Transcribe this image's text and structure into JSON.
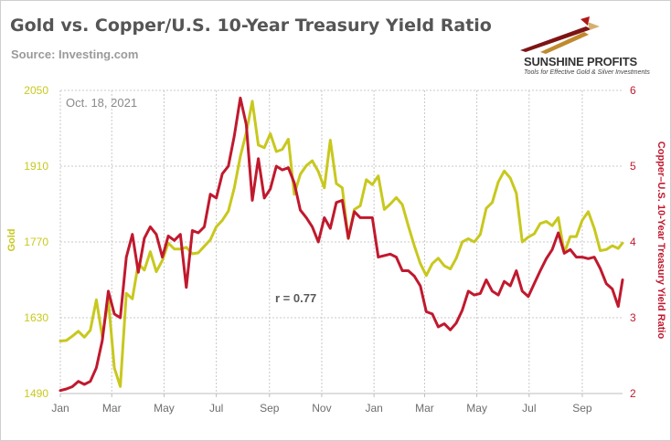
{
  "header": {
    "title": "Gold vs. Copper/U.S. 10-Year Treasury Yield Ratio",
    "source": "Source: Investing.com"
  },
  "logo": {
    "name": "SUNSHINE PROFITS",
    "tagline": "Tools for Effective Gold & Silver Investments"
  },
  "colors": {
    "gold": "#c8c81e",
    "ratio": "#c0192e",
    "axis_text": "#6d6d6d",
    "grid": "#c8c8c8"
  },
  "chart_data": {
    "type": "line",
    "date_label": "Oct. 18, 2021",
    "annotation": "r = 0.77",
    "x_tick_labels": [
      "Jan",
      "Mar",
      "May",
      "Jul",
      "Sep",
      "Nov",
      "Jan",
      "Mar",
      "May",
      "Jul",
      "Sep"
    ],
    "x_range": [
      "2020-01-01",
      "2021-10-18"
    ],
    "y_left": {
      "label": "Gold",
      "ticks": [
        1490,
        1630,
        1770,
        1910,
        2050
      ],
      "range": [
        1490,
        2050
      ]
    },
    "y_right": {
      "label": "Copper–U.S. 10-Year Treasury Yield Ratio",
      "ticks": [
        2,
        3,
        4,
        5,
        6
      ],
      "range": [
        2,
        6
      ]
    },
    "grid": true,
    "series": [
      {
        "name": "Gold",
        "axis": "left",
        "color": "#c8c81e",
        "points": [
          [
            "2020-01-01",
            1587
          ],
          [
            "2020-01-08",
            1588
          ],
          [
            "2020-01-15",
            1596
          ],
          [
            "2020-01-22",
            1605
          ],
          [
            "2020-01-29",
            1594
          ],
          [
            "2020-02-05",
            1607
          ],
          [
            "2020-02-12",
            1663
          ],
          [
            "2020-02-19",
            1595
          ],
          [
            "2020-02-26",
            1663
          ],
          [
            "2020-03-04",
            1537
          ],
          [
            "2020-03-11",
            1503
          ],
          [
            "2020-03-18",
            1675
          ],
          [
            "2020-03-25",
            1665
          ],
          [
            "2020-04-01",
            1730
          ],
          [
            "2020-04-08",
            1718
          ],
          [
            "2020-04-15",
            1752
          ],
          [
            "2020-04-22",
            1715
          ],
          [
            "2020-04-29",
            1736
          ],
          [
            "2020-05-06",
            1768
          ],
          [
            "2020-05-13",
            1757
          ],
          [
            "2020-05-20",
            1757
          ],
          [
            "2020-05-27",
            1760
          ],
          [
            "2020-06-03",
            1748
          ],
          [
            "2020-06-10",
            1750
          ],
          [
            "2020-06-17",
            1762
          ],
          [
            "2020-06-24",
            1774
          ],
          [
            "2020-07-01",
            1798
          ],
          [
            "2020-07-08",
            1810
          ],
          [
            "2020-07-15",
            1827
          ],
          [
            "2020-07-22",
            1870
          ],
          [
            "2020-07-29",
            1928
          ],
          [
            "2020-08-05",
            1972
          ],
          [
            "2020-08-12",
            2030
          ],
          [
            "2020-08-19",
            1949
          ],
          [
            "2020-08-26",
            1944
          ],
          [
            "2020-09-02",
            1970
          ],
          [
            "2020-09-09",
            1937
          ],
          [
            "2020-09-16",
            1941
          ],
          [
            "2020-09-23",
            1960
          ],
          [
            "2020-09-30",
            1858
          ],
          [
            "2020-10-07",
            1895
          ],
          [
            "2020-10-14",
            1911
          ],
          [
            "2020-10-21",
            1920
          ],
          [
            "2020-10-28",
            1900
          ],
          [
            "2020-11-04",
            1870
          ],
          [
            "2020-11-11",
            1958
          ],
          [
            "2020-11-18",
            1878
          ],
          [
            "2020-11-25",
            1870
          ],
          [
            "2020-12-02",
            1776
          ],
          [
            "2020-12-09",
            1830
          ],
          [
            "2020-12-16",
            1837
          ],
          [
            "2020-12-23",
            1885
          ],
          [
            "2020-12-30",
            1876
          ],
          [
            "2021-01-06",
            1892
          ],
          [
            "2021-01-13",
            1830
          ],
          [
            "2021-01-20",
            1840
          ],
          [
            "2021-01-27",
            1852
          ],
          [
            "2021-02-03",
            1839
          ],
          [
            "2021-02-10",
            1800
          ],
          [
            "2021-02-17",
            1763
          ],
          [
            "2021-02-24",
            1730
          ],
          [
            "2021-03-03",
            1708
          ],
          [
            "2021-03-10",
            1730
          ],
          [
            "2021-03-17",
            1740
          ],
          [
            "2021-03-24",
            1726
          ],
          [
            "2021-03-31",
            1720
          ],
          [
            "2021-04-07",
            1740
          ],
          [
            "2021-04-14",
            1770
          ],
          [
            "2021-04-21",
            1776
          ],
          [
            "2021-04-28",
            1770
          ],
          [
            "2021-05-05",
            1784
          ],
          [
            "2021-05-12",
            1832
          ],
          [
            "2021-05-19",
            1843
          ],
          [
            "2021-05-26",
            1881
          ],
          [
            "2021-06-02",
            1901
          ],
          [
            "2021-06-09",
            1888
          ],
          [
            "2021-06-16",
            1860
          ],
          [
            "2021-06-23",
            1770
          ],
          [
            "2021-06-30",
            1779
          ],
          [
            "2021-07-07",
            1785
          ],
          [
            "2021-07-14",
            1804
          ],
          [
            "2021-07-21",
            1808
          ],
          [
            "2021-07-28",
            1800
          ],
          [
            "2021-08-04",
            1815
          ],
          [
            "2021-08-11",
            1750
          ],
          [
            "2021-08-18",
            1780
          ],
          [
            "2021-08-25",
            1780
          ],
          [
            "2021-09-01",
            1810
          ],
          [
            "2021-09-08",
            1826
          ],
          [
            "2021-09-15",
            1795
          ],
          [
            "2021-09-22",
            1754
          ],
          [
            "2021-09-29",
            1756
          ],
          [
            "2021-10-06",
            1763
          ],
          [
            "2021-10-13",
            1758
          ],
          [
            "2021-10-18",
            1768
          ]
        ]
      },
      {
        "name": "Copper–U.S. 10-Year Treasury Yield Ratio",
        "axis": "right",
        "color": "#c0192e",
        "points": [
          [
            "2020-01-01",
            2.04
          ],
          [
            "2020-01-08",
            2.06
          ],
          [
            "2020-01-15",
            2.09
          ],
          [
            "2020-01-22",
            2.16
          ],
          [
            "2020-01-29",
            2.12
          ],
          [
            "2020-02-05",
            2.16
          ],
          [
            "2020-02-12",
            2.34
          ],
          [
            "2020-02-19",
            2.7
          ],
          [
            "2020-02-26",
            3.35
          ],
          [
            "2020-03-04",
            3.05
          ],
          [
            "2020-03-11",
            3.0
          ],
          [
            "2020-03-18",
            3.8
          ],
          [
            "2020-03-25",
            4.1
          ],
          [
            "2020-04-01",
            3.6
          ],
          [
            "2020-04-08",
            4.05
          ],
          [
            "2020-04-15",
            4.2
          ],
          [
            "2020-04-22",
            4.1
          ],
          [
            "2020-04-29",
            3.8
          ],
          [
            "2020-05-06",
            4.08
          ],
          [
            "2020-05-13",
            4.02
          ],
          [
            "2020-05-20",
            4.1
          ],
          [
            "2020-05-27",
            3.4
          ],
          [
            "2020-06-03",
            4.15
          ],
          [
            "2020-06-10",
            4.12
          ],
          [
            "2020-06-17",
            4.2
          ],
          [
            "2020-06-24",
            4.63
          ],
          [
            "2020-07-01",
            4.58
          ],
          [
            "2020-07-08",
            4.9
          ],
          [
            "2020-07-15",
            5.0
          ],
          [
            "2020-07-22",
            5.4
          ],
          [
            "2020-07-29",
            5.9
          ],
          [
            "2020-08-05",
            5.55
          ],
          [
            "2020-08-12",
            4.55
          ],
          [
            "2020-08-19",
            5.1
          ],
          [
            "2020-08-26",
            4.58
          ],
          [
            "2020-09-02",
            4.7
          ],
          [
            "2020-09-09",
            5.0
          ],
          [
            "2020-09-16",
            4.95
          ],
          [
            "2020-09-23",
            4.98
          ],
          [
            "2020-09-30",
            4.78
          ],
          [
            "2020-10-07",
            4.42
          ],
          [
            "2020-10-14",
            4.32
          ],
          [
            "2020-10-21",
            4.2
          ],
          [
            "2020-10-28",
            4.0
          ],
          [
            "2020-11-04",
            4.32
          ],
          [
            "2020-11-11",
            4.18
          ],
          [
            "2020-11-18",
            4.52
          ],
          [
            "2020-11-25",
            4.55
          ],
          [
            "2020-12-02",
            4.05
          ],
          [
            "2020-12-09",
            4.4
          ],
          [
            "2020-12-16",
            4.32
          ],
          [
            "2020-12-23",
            4.32
          ],
          [
            "2020-12-30",
            4.32
          ],
          [
            "2021-01-06",
            3.8
          ],
          [
            "2021-01-13",
            3.82
          ],
          [
            "2021-01-20",
            3.84
          ],
          [
            "2021-01-27",
            3.8
          ],
          [
            "2021-02-03",
            3.62
          ],
          [
            "2021-02-10",
            3.62
          ],
          [
            "2021-02-17",
            3.55
          ],
          [
            "2021-02-24",
            3.42
          ],
          [
            "2021-03-03",
            3.08
          ],
          [
            "2021-03-10",
            3.05
          ],
          [
            "2021-03-17",
            2.88
          ],
          [
            "2021-03-24",
            2.92
          ],
          [
            "2021-03-31",
            2.84
          ],
          [
            "2021-04-07",
            2.93
          ],
          [
            "2021-04-14",
            3.1
          ],
          [
            "2021-04-21",
            3.35
          ],
          [
            "2021-04-28",
            3.3
          ],
          [
            "2021-05-05",
            3.32
          ],
          [
            "2021-05-12",
            3.5
          ],
          [
            "2021-05-19",
            3.35
          ],
          [
            "2021-05-26",
            3.3
          ],
          [
            "2021-06-02",
            3.48
          ],
          [
            "2021-06-09",
            3.42
          ],
          [
            "2021-06-16",
            3.62
          ],
          [
            "2021-06-23",
            3.35
          ],
          [
            "2021-06-30",
            3.28
          ],
          [
            "2021-07-07",
            3.45
          ],
          [
            "2021-07-14",
            3.62
          ],
          [
            "2021-07-21",
            3.78
          ],
          [
            "2021-07-28",
            3.9
          ],
          [
            "2021-08-04",
            4.12
          ],
          [
            "2021-08-11",
            3.85
          ],
          [
            "2021-08-18",
            3.9
          ],
          [
            "2021-08-25",
            3.8
          ],
          [
            "2021-09-01",
            3.8
          ],
          [
            "2021-09-08",
            3.78
          ],
          [
            "2021-09-15",
            3.8
          ],
          [
            "2021-09-22",
            3.65
          ],
          [
            "2021-09-29",
            3.45
          ],
          [
            "2021-10-06",
            3.38
          ],
          [
            "2021-10-13",
            3.15
          ],
          [
            "2021-10-18",
            3.5
          ]
        ]
      }
    ]
  }
}
